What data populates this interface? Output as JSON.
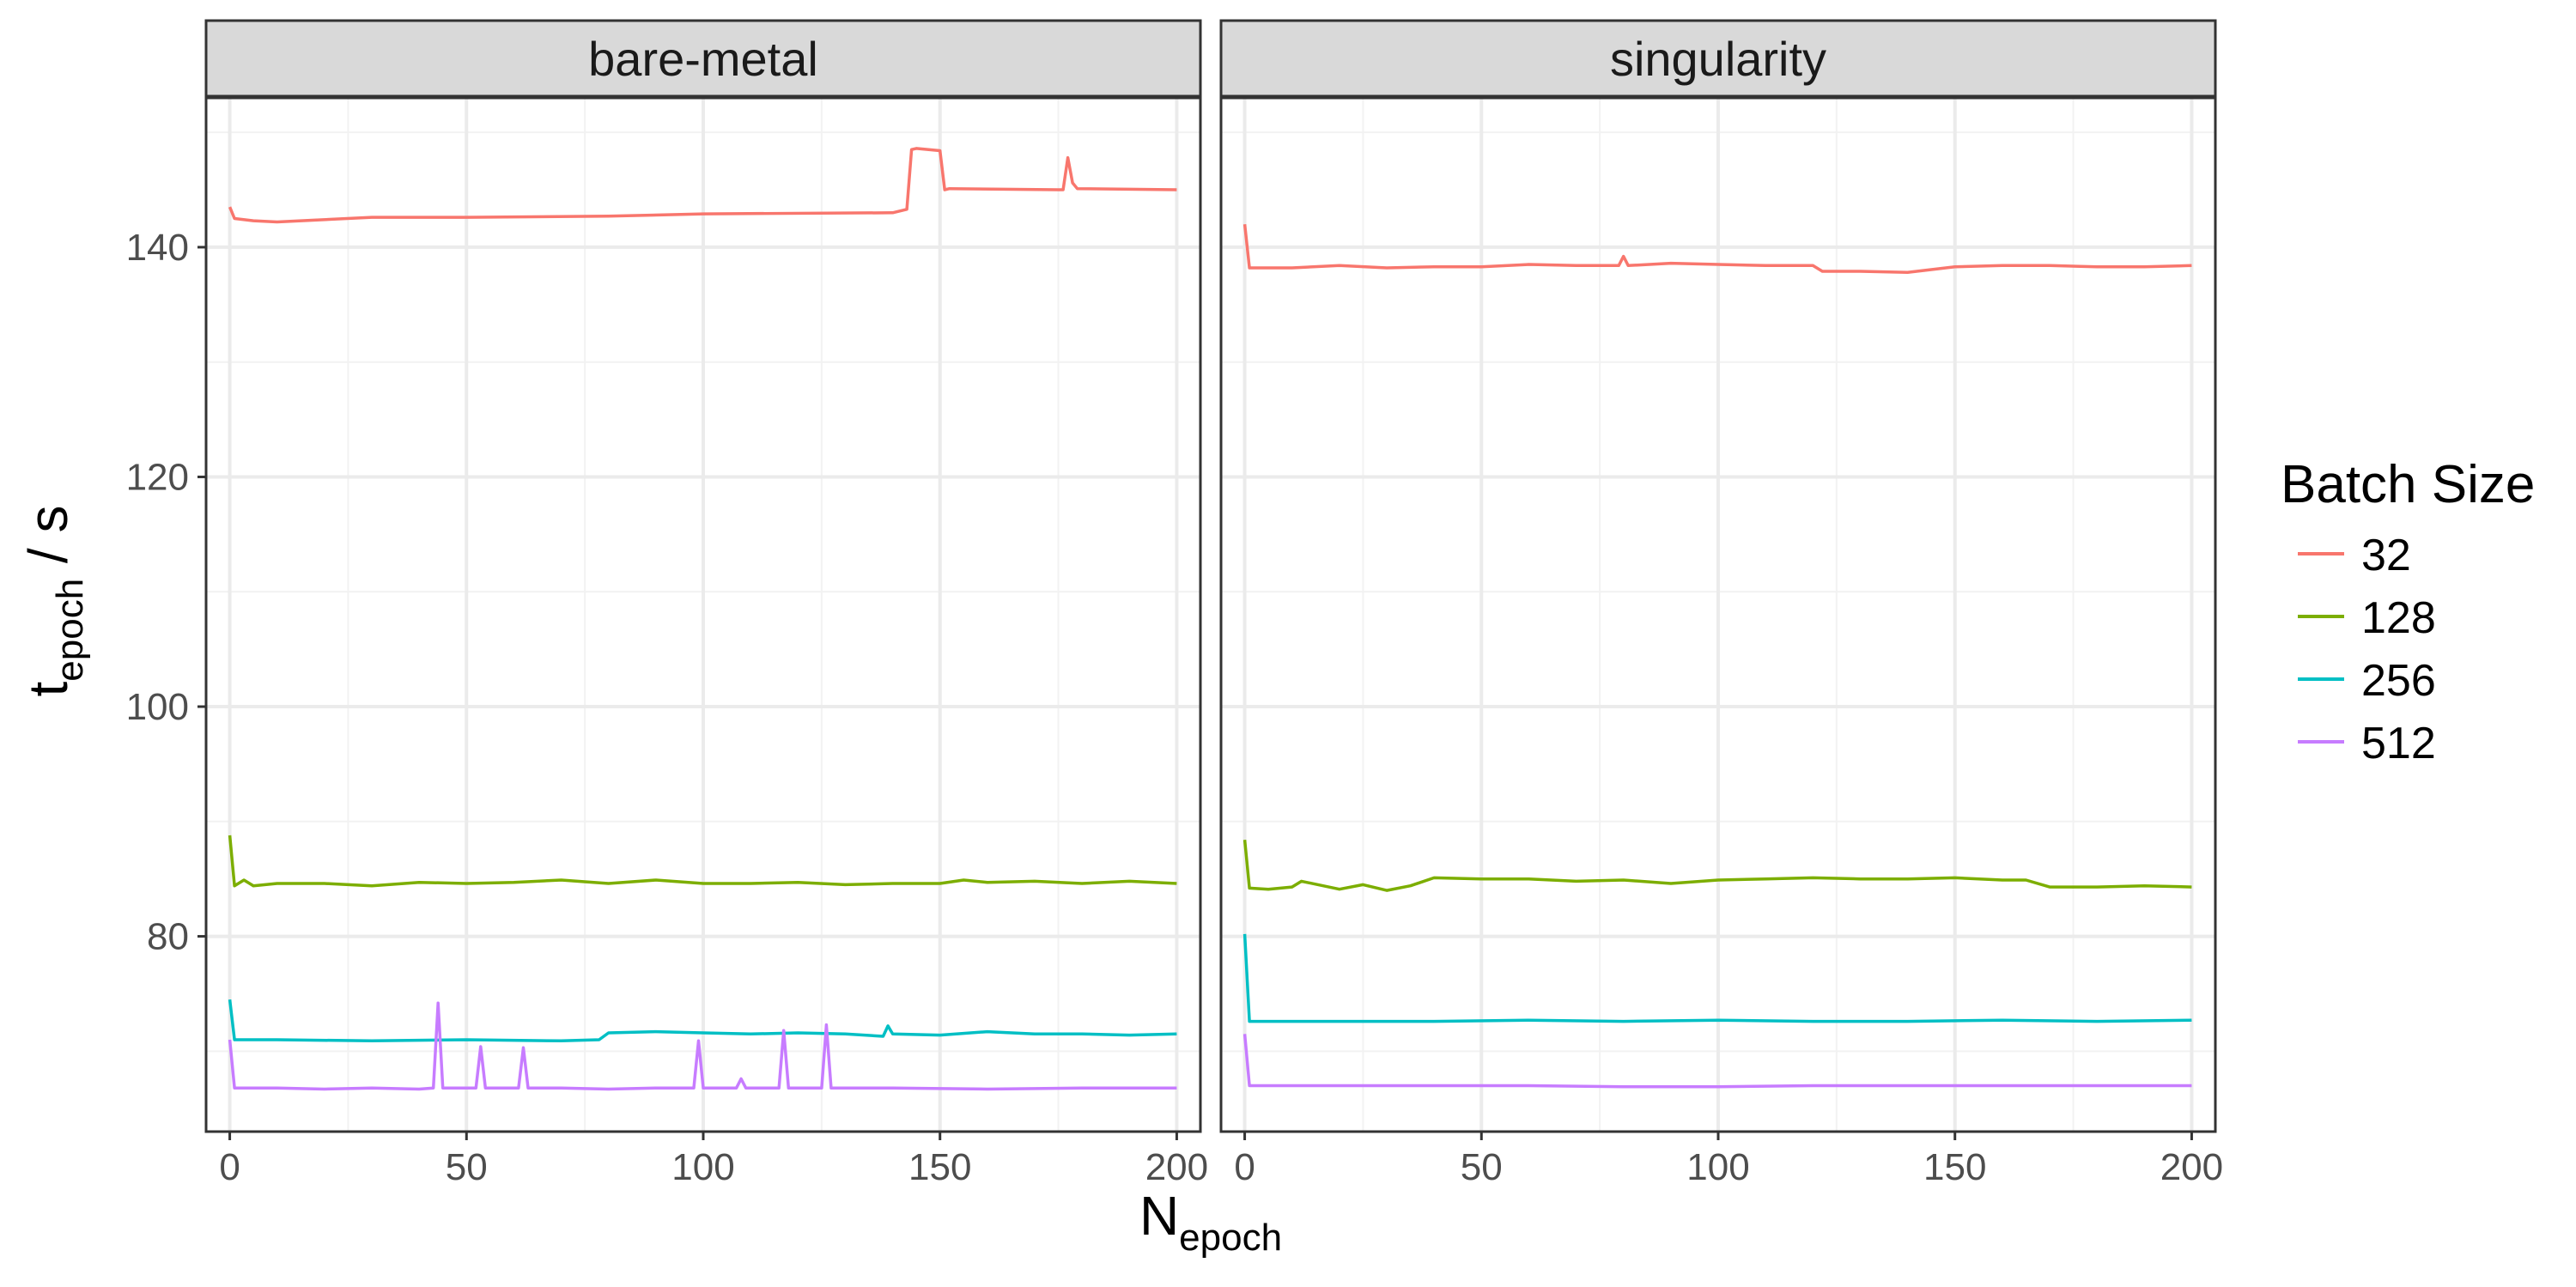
{
  "chart_data": {
    "type": "line",
    "x_label": "N",
    "x_label_sub": "epoch",
    "y_label": "t",
    "y_label_sub": "epoch",
    "y_label_suffix": " / s",
    "xlim": [
      -5,
      205
    ],
    "ylim": [
      63,
      153
    ],
    "x_ticks": [
      0,
      50,
      100,
      150,
      200
    ],
    "y_ticks": [
      80,
      100,
      120,
      140
    ],
    "grid": true,
    "legend": {
      "title": "Batch Size",
      "position": "right"
    },
    "series_colors": {
      "32": "#F8766D",
      "128": "#7CAE00",
      "256": "#00BFC4",
      "512": "#C77CFF"
    },
    "panels": [
      {
        "label": "bare-metal",
        "series": [
          {
            "name": "32",
            "color": "#F8766D",
            "x": [
              0,
              1,
              5,
              10,
              30,
              50,
              80,
              100,
              140,
              143,
              144,
              145,
              150,
              151,
              152,
              175,
              176,
              177,
              178,
              179,
              200
            ],
            "y": [
              143.5,
              142.5,
              142.3,
              142.2,
              142.6,
              142.6,
              142.7,
              142.9,
              143.0,
              143.3,
              148.5,
              148.6,
              148.4,
              145.0,
              145.1,
              145.0,
              145.0,
              147.8,
              145.6,
              145.1,
              145.0
            ]
          },
          {
            "name": "128",
            "color": "#7CAE00",
            "x": [
              0,
              1,
              3,
              5,
              10,
              20,
              30,
              40,
              50,
              60,
              70,
              80,
              90,
              100,
              110,
              120,
              130,
              140,
              150,
              155,
              160,
              170,
              180,
              190,
              200
            ],
            "y": [
              88.8,
              84.4,
              84.9,
              84.4,
              84.6,
              84.6,
              84.4,
              84.7,
              84.6,
              84.7,
              84.9,
              84.6,
              84.9,
              84.6,
              84.6,
              84.7,
              84.5,
              84.6,
              84.6,
              84.9,
              84.7,
              84.8,
              84.6,
              84.8,
              84.6
            ]
          },
          {
            "name": "256",
            "color": "#00BFC4",
            "x": [
              0,
              1,
              10,
              30,
              50,
              70,
              78,
              80,
              90,
              100,
              110,
              120,
              130,
              138,
              139,
              140,
              150,
              160,
              170,
              180,
              190,
              200
            ],
            "y": [
              74.5,
              71.0,
              71.0,
              70.9,
              71.0,
              70.9,
              71.0,
              71.6,
              71.7,
              71.6,
              71.5,
              71.6,
              71.5,
              71.3,
              72.2,
              71.5,
              71.4,
              71.7,
              71.5,
              71.5,
              71.4,
              71.5
            ]
          },
          {
            "name": "512",
            "color": "#C77CFF",
            "x": [
              0,
              1,
              10,
              20,
              30,
              40,
              43,
              44,
              45,
              52,
              53,
              54,
              61,
              62,
              63,
              70,
              80,
              90,
              98,
              99,
              100,
              107,
              108,
              109,
              116,
              117,
              118,
              125,
              126,
              127,
              140,
              160,
              180,
              200
            ],
            "y": [
              71.0,
              66.8,
              66.8,
              66.7,
              66.8,
              66.7,
              66.8,
              74.2,
              66.8,
              66.8,
              70.4,
              66.8,
              66.8,
              70.3,
              66.8,
              66.8,
              66.7,
              66.8,
              66.8,
              70.9,
              66.8,
              66.8,
              67.6,
              66.8,
              66.8,
              71.8,
              66.8,
              66.8,
              72.3,
              66.8,
              66.8,
              66.7,
              66.8,
              66.8
            ]
          }
        ]
      },
      {
        "label": "singularity",
        "series": [
          {
            "name": "32",
            "color": "#F8766D",
            "x": [
              0,
              1,
              10,
              20,
              30,
              40,
              50,
              60,
              70,
              79,
              80,
              81,
              90,
              100,
              110,
              120,
              122,
              130,
              140,
              150,
              160,
              170,
              180,
              190,
              200
            ],
            "y": [
              142.0,
              138.2,
              138.2,
              138.4,
              138.2,
              138.3,
              138.3,
              138.5,
              138.4,
              138.4,
              139.2,
              138.4,
              138.6,
              138.5,
              138.4,
              138.4,
              137.9,
              137.9,
              137.8,
              138.3,
              138.4,
              138.4,
              138.3,
              138.3,
              138.4
            ]
          },
          {
            "name": "128",
            "color": "#7CAE00",
            "x": [
              0,
              1,
              5,
              10,
              12,
              20,
              25,
              30,
              35,
              40,
              50,
              60,
              70,
              80,
              90,
              100,
              110,
              120,
              130,
              140,
              150,
              160,
              165,
              170,
              180,
              190,
              200
            ],
            "y": [
              88.4,
              84.2,
              84.1,
              84.3,
              84.8,
              84.1,
              84.5,
              84.0,
              84.4,
              85.1,
              85.0,
              85.0,
              84.8,
              84.9,
              84.6,
              84.9,
              85.0,
              85.1,
              85.0,
              85.0,
              85.1,
              84.9,
              84.9,
              84.3,
              84.3,
              84.4,
              84.3
            ]
          },
          {
            "name": "256",
            "color": "#00BFC4",
            "x": [
              0,
              1,
              20,
              40,
              60,
              80,
              100,
              120,
              140,
              160,
              180,
              200
            ],
            "y": [
              80.2,
              72.6,
              72.6,
              72.6,
              72.7,
              72.6,
              72.7,
              72.6,
              72.6,
              72.7,
              72.6,
              72.7
            ]
          },
          {
            "name": "512",
            "color": "#C77CFF",
            "x": [
              0,
              1,
              20,
              40,
              60,
              80,
              100,
              120,
              140,
              160,
              180,
              200
            ],
            "y": [
              71.5,
              67.0,
              67.0,
              67.0,
              67.0,
              66.9,
              66.9,
              67.0,
              67.0,
              67.0,
              67.0,
              67.0
            ]
          }
        ]
      }
    ]
  }
}
